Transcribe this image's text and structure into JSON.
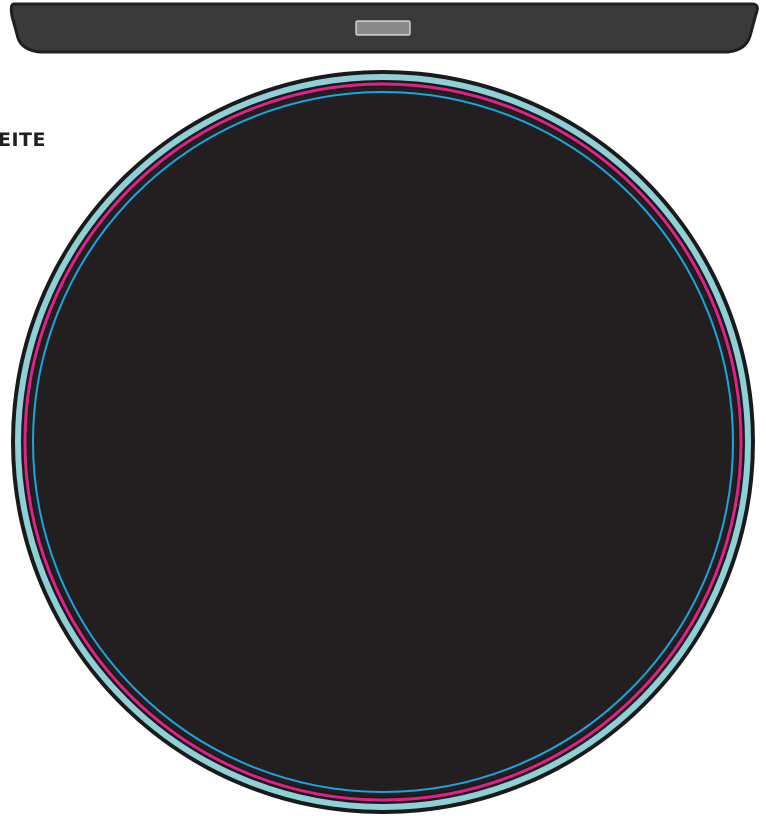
{
  "side_label": "EITE",
  "colors": {
    "bar_dark": "#3a3a3a",
    "bar_outline": "#1f1f1f",
    "bar_slot": "#8a8a8a",
    "disc_fill": "#231f20",
    "disc_outline": "#1a1a1a",
    "ring_outer": "#8fcfd6",
    "ring_magenta": "#e0218a",
    "ring_inner": "#1ba4de"
  },
  "icons": {
    "device_bar": "tray-bar-icon",
    "slot": "slot-icon",
    "disc": "disc-icon"
  }
}
